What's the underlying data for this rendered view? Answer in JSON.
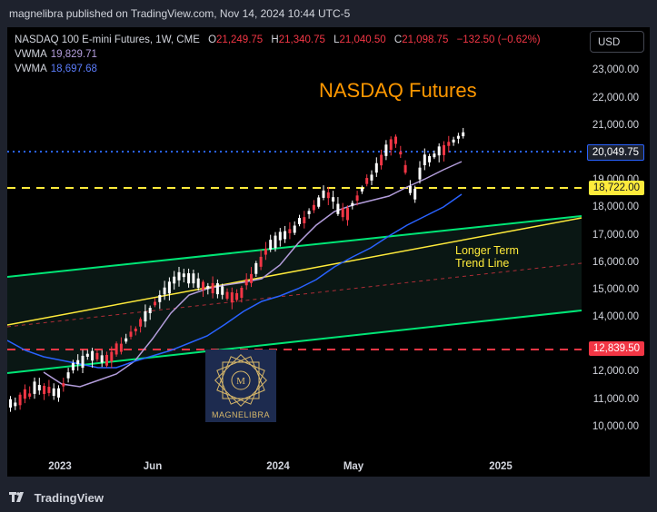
{
  "header": {
    "published_text": "magnelibra published on TradingView.com, Nov 14, 2024 10:44 UTC-5"
  },
  "legend": {
    "symbol": "NASDAQ 100 E-mini Futures, 1W, CME",
    "open_label": "O",
    "open_value": "21,249.75",
    "high_label": "H",
    "high_value": "21,340.75",
    "low_label": "L",
    "low_value": "21,040.50",
    "close_label": "C",
    "close_value": "21,098.75",
    "change": "−132.50 (−0.62%)",
    "vwma1_label": "VWMA",
    "vwma1_value": "19,829.71",
    "vwma2_label": "VWMA",
    "vwma2_value": "18,697.68"
  },
  "currency_button": "USD",
  "price_axis": [
    "23,000.00",
    "22,000.00",
    "21,000.00",
    "19,000.00",
    "18,000.00",
    "17,000.00",
    "16,000.00",
    "15,000.00",
    "14,000.00",
    "12,000.00",
    "11,000.00",
    "10,000.00"
  ],
  "price_tags": {
    "blue": "20,049.75",
    "yellow": "18,722.00",
    "red": "12,839.50"
  },
  "time_axis": [
    "2023",
    "Jun",
    "2024",
    "May",
    "2025"
  ],
  "annotations": {
    "title": "NASDAQ Futures",
    "trend_line_1": "Longer Term",
    "trend_line_2": "Trend Line"
  },
  "logo_text": "MAGNELIBRA",
  "footer": {
    "brand": "TradingView"
  },
  "colors": {
    "up": "#ffffff",
    "down": "#f23645",
    "vwma_fast": "#b39ddb",
    "vwma_slow": "#2962ff",
    "channel": "#00e676",
    "trend": "#ffeb3b",
    "blue_level": "#2962ff",
    "yellow_level": "#ffeb3b",
    "red_level": "#f23645",
    "title": "#ff9800"
  },
  "chart_data": {
    "type": "candlestick",
    "timeframe": "1W",
    "ylim": [
      9500,
      23500
    ],
    "horizontal_levels": [
      20049.75,
      18722.0,
      12839.5
    ],
    "series": [
      {
        "name": "VWMA",
        "last": 19829.71
      },
      {
        "name": "VWMA",
        "last": 18697.68
      }
    ]
  }
}
